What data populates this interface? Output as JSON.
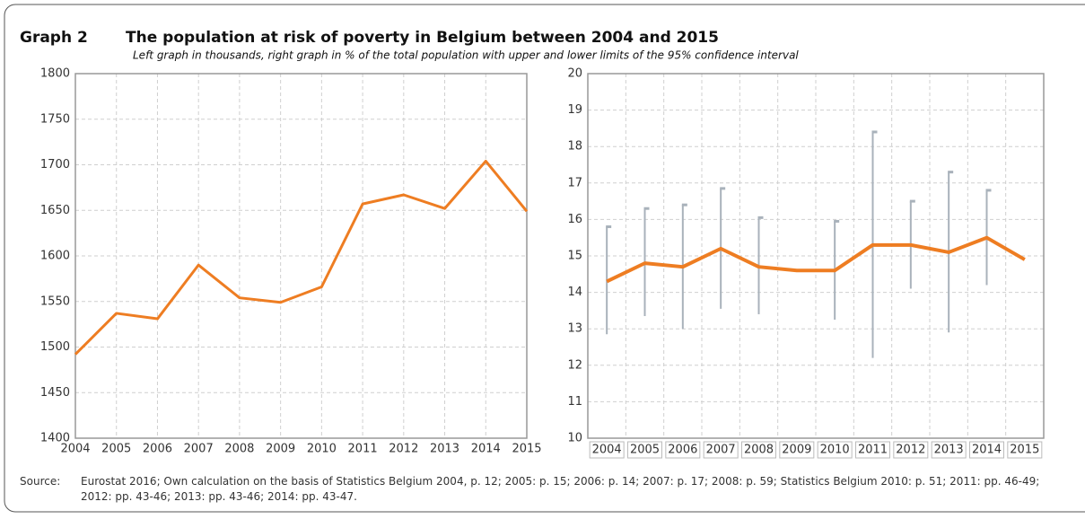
{
  "header": {
    "label": "Graph 2",
    "title": "The population at risk of poverty in Belgium between 2004 and 2015",
    "subtitle": "Left graph in thousands, right graph in % of the total population with upper and lower limits of the 95% confidence interval"
  },
  "chart_data": [
    {
      "type": "line",
      "x": [
        2004,
        2005,
        2006,
        2007,
        2008,
        2009,
        2010,
        2011,
        2012,
        2013,
        2014,
        2015
      ],
      "values": [
        1492,
        1537,
        1531,
        1590,
        1554,
        1549,
        1566,
        1657,
        1667,
        1652,
        1704,
        1649
      ],
      "color": "#ee7d22",
      "xlim": [
        2004,
        2015
      ],
      "xticks": [
        2004,
        2005,
        2006,
        2007,
        2008,
        2009,
        2010,
        2011,
        2012,
        2013,
        2014,
        2015
      ],
      "ylim": [
        1400,
        1800
      ],
      "yticks": [
        1400,
        1450,
        1500,
        1550,
        1600,
        1650,
        1700,
        1750,
        1800
      ],
      "grid": true
    },
    {
      "type": "line",
      "categories": [
        "2004",
        "2005",
        "2006",
        "2007",
        "2008",
        "2009",
        "2010",
        "2011",
        "2012",
        "2013",
        "2014",
        "2015"
      ],
      "values": [
        14.3,
        14.8,
        14.7,
        15.2,
        14.7,
        14.6,
        14.6,
        15.3,
        15.3,
        15.1,
        15.5,
        14.9
      ],
      "upper": [
        15.8,
        16.3,
        16.4,
        16.85,
        16.05,
        null,
        15.95,
        18.4,
        16.5,
        17.3,
        16.8,
        null
      ],
      "lower": [
        12.85,
        13.35,
        13.0,
        13.55,
        13.4,
        null,
        13.25,
        12.2,
        14.1,
        12.9,
        14.2,
        null
      ],
      "color": "#ee7d22",
      "error_color": "#a9b2bb",
      "ylim": [
        10,
        20
      ],
      "yticks": [
        10,
        11,
        12,
        13,
        14,
        15,
        16,
        17,
        18,
        19,
        20
      ],
      "grid": true
    }
  ],
  "source": {
    "label": "Source:",
    "text": "Eurostat 2016; Own calculation on the basis of Statistics Belgium 2004, p. 12; 2005: p. 15; 2006: p. 14; 2007: p. 17; 2008: p. 59; Statistics Belgium 2010: p. 51; 2011: pp. 46-49; 2012: pp. 43-46; 2013: pp. 43-46; 2014: pp. 43-47."
  }
}
